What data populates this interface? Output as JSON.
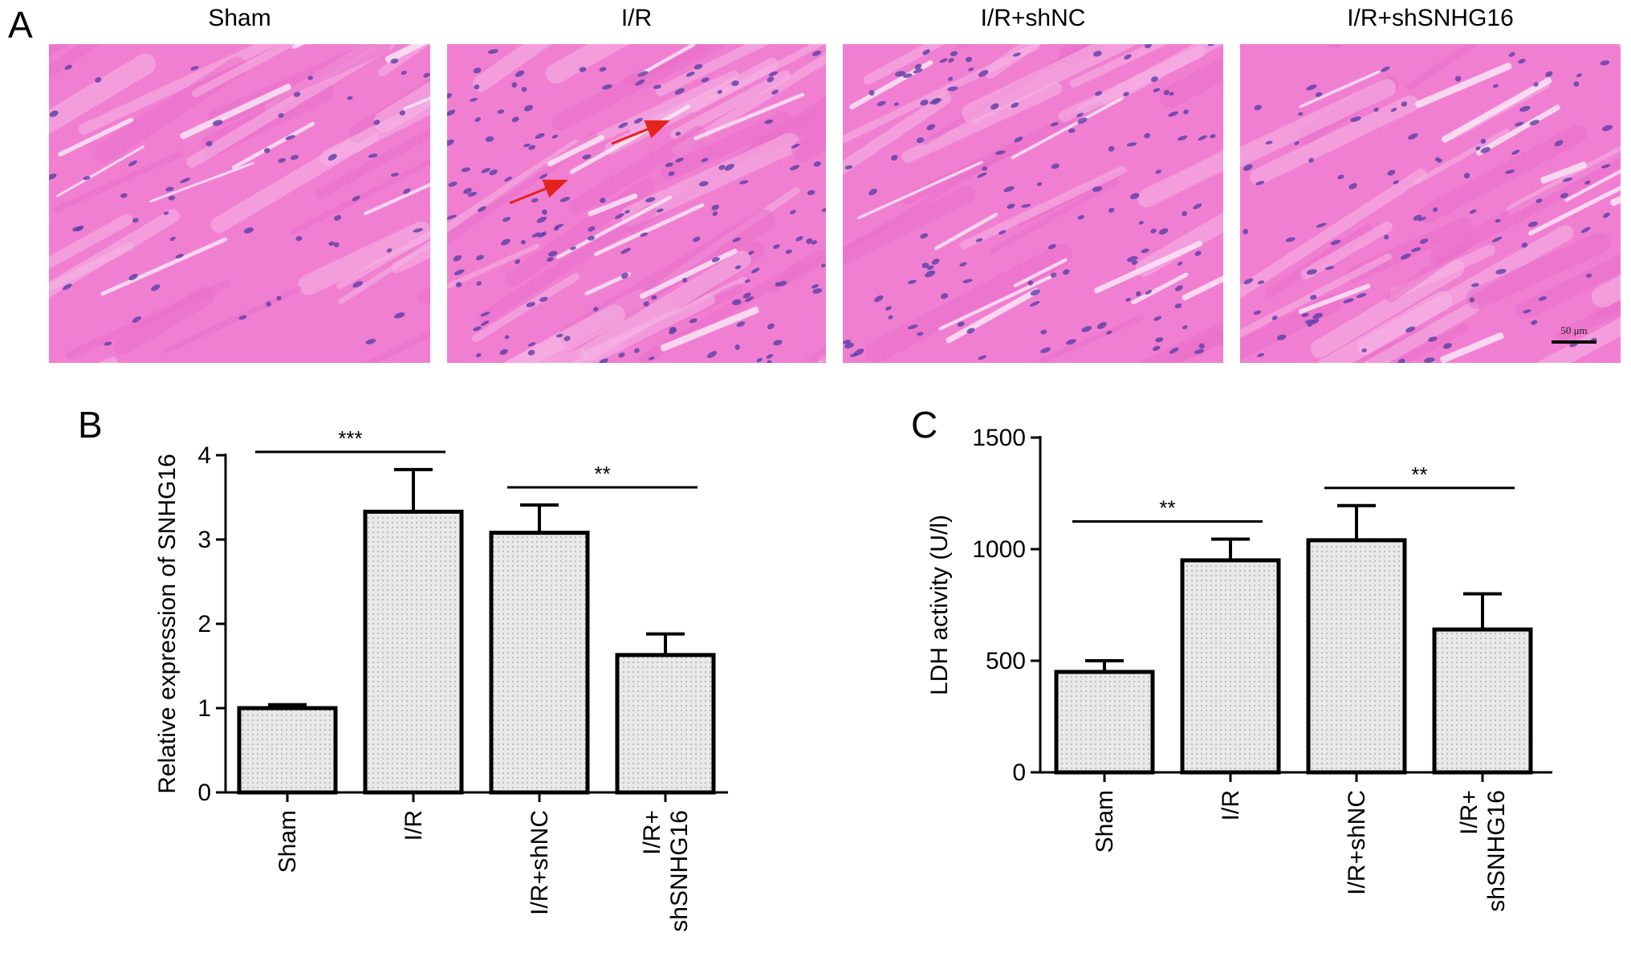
{
  "panels": {
    "a": "A",
    "b": "B",
    "c": "C"
  },
  "micrographs": {
    "labels": [
      "Sham",
      "I/R",
      "I/R+shNC",
      "I/R+shSNHG16"
    ],
    "scale_bar": "50 μm",
    "colors": {
      "tissue": "#f07fd2",
      "tissue_light": "#f6b6e6",
      "nuclei": "#5a3ea6",
      "arrow": "#e3231e"
    }
  },
  "chart_data": [
    {
      "type": "bar",
      "categories": [
        "Sham",
        "I/R",
        "I/R+shNC",
        "I/R+shSNHG16"
      ],
      "category_lines": [
        [
          "Sham"
        ],
        [
          "I/R"
        ],
        [
          "I/R+shNC"
        ],
        [
          "I/R+",
          "shSNHG16"
        ]
      ],
      "values": [
        1.0,
        3.33,
        3.08,
        1.63
      ],
      "errors": [
        0.04,
        0.5,
        0.33,
        0.25
      ],
      "ylabel": "Relative expression of SNHG16",
      "ylim": [
        0,
        4
      ],
      "yticks": [
        0,
        1,
        2,
        3,
        4
      ],
      "significance": [
        {
          "from": 0,
          "to": 1,
          "label": "***"
        },
        {
          "from": 2,
          "to": 3,
          "label": "**"
        }
      ],
      "bar_fill": "#e9e9e9"
    },
    {
      "type": "bar",
      "categories": [
        "Sham",
        "I/R",
        "I/R+shNC",
        "I/R+shSNHG16"
      ],
      "category_lines": [
        [
          "Sham"
        ],
        [
          "I/R"
        ],
        [
          "I/R+shNC"
        ],
        [
          "I/R+",
          "shSNHG16"
        ]
      ],
      "values": [
        450,
        950,
        1040,
        640
      ],
      "errors": [
        50,
        95,
        155,
        160
      ],
      "ylabel": "LDH activity (U/l)",
      "ylim": [
        0,
        1500
      ],
      "yticks": [
        0,
        500,
        1000,
        1500
      ],
      "significance": [
        {
          "from": 0,
          "to": 1,
          "label": "**"
        },
        {
          "from": 2,
          "to": 3,
          "label": "**"
        }
      ],
      "bar_fill": "#e9e9e9"
    }
  ]
}
